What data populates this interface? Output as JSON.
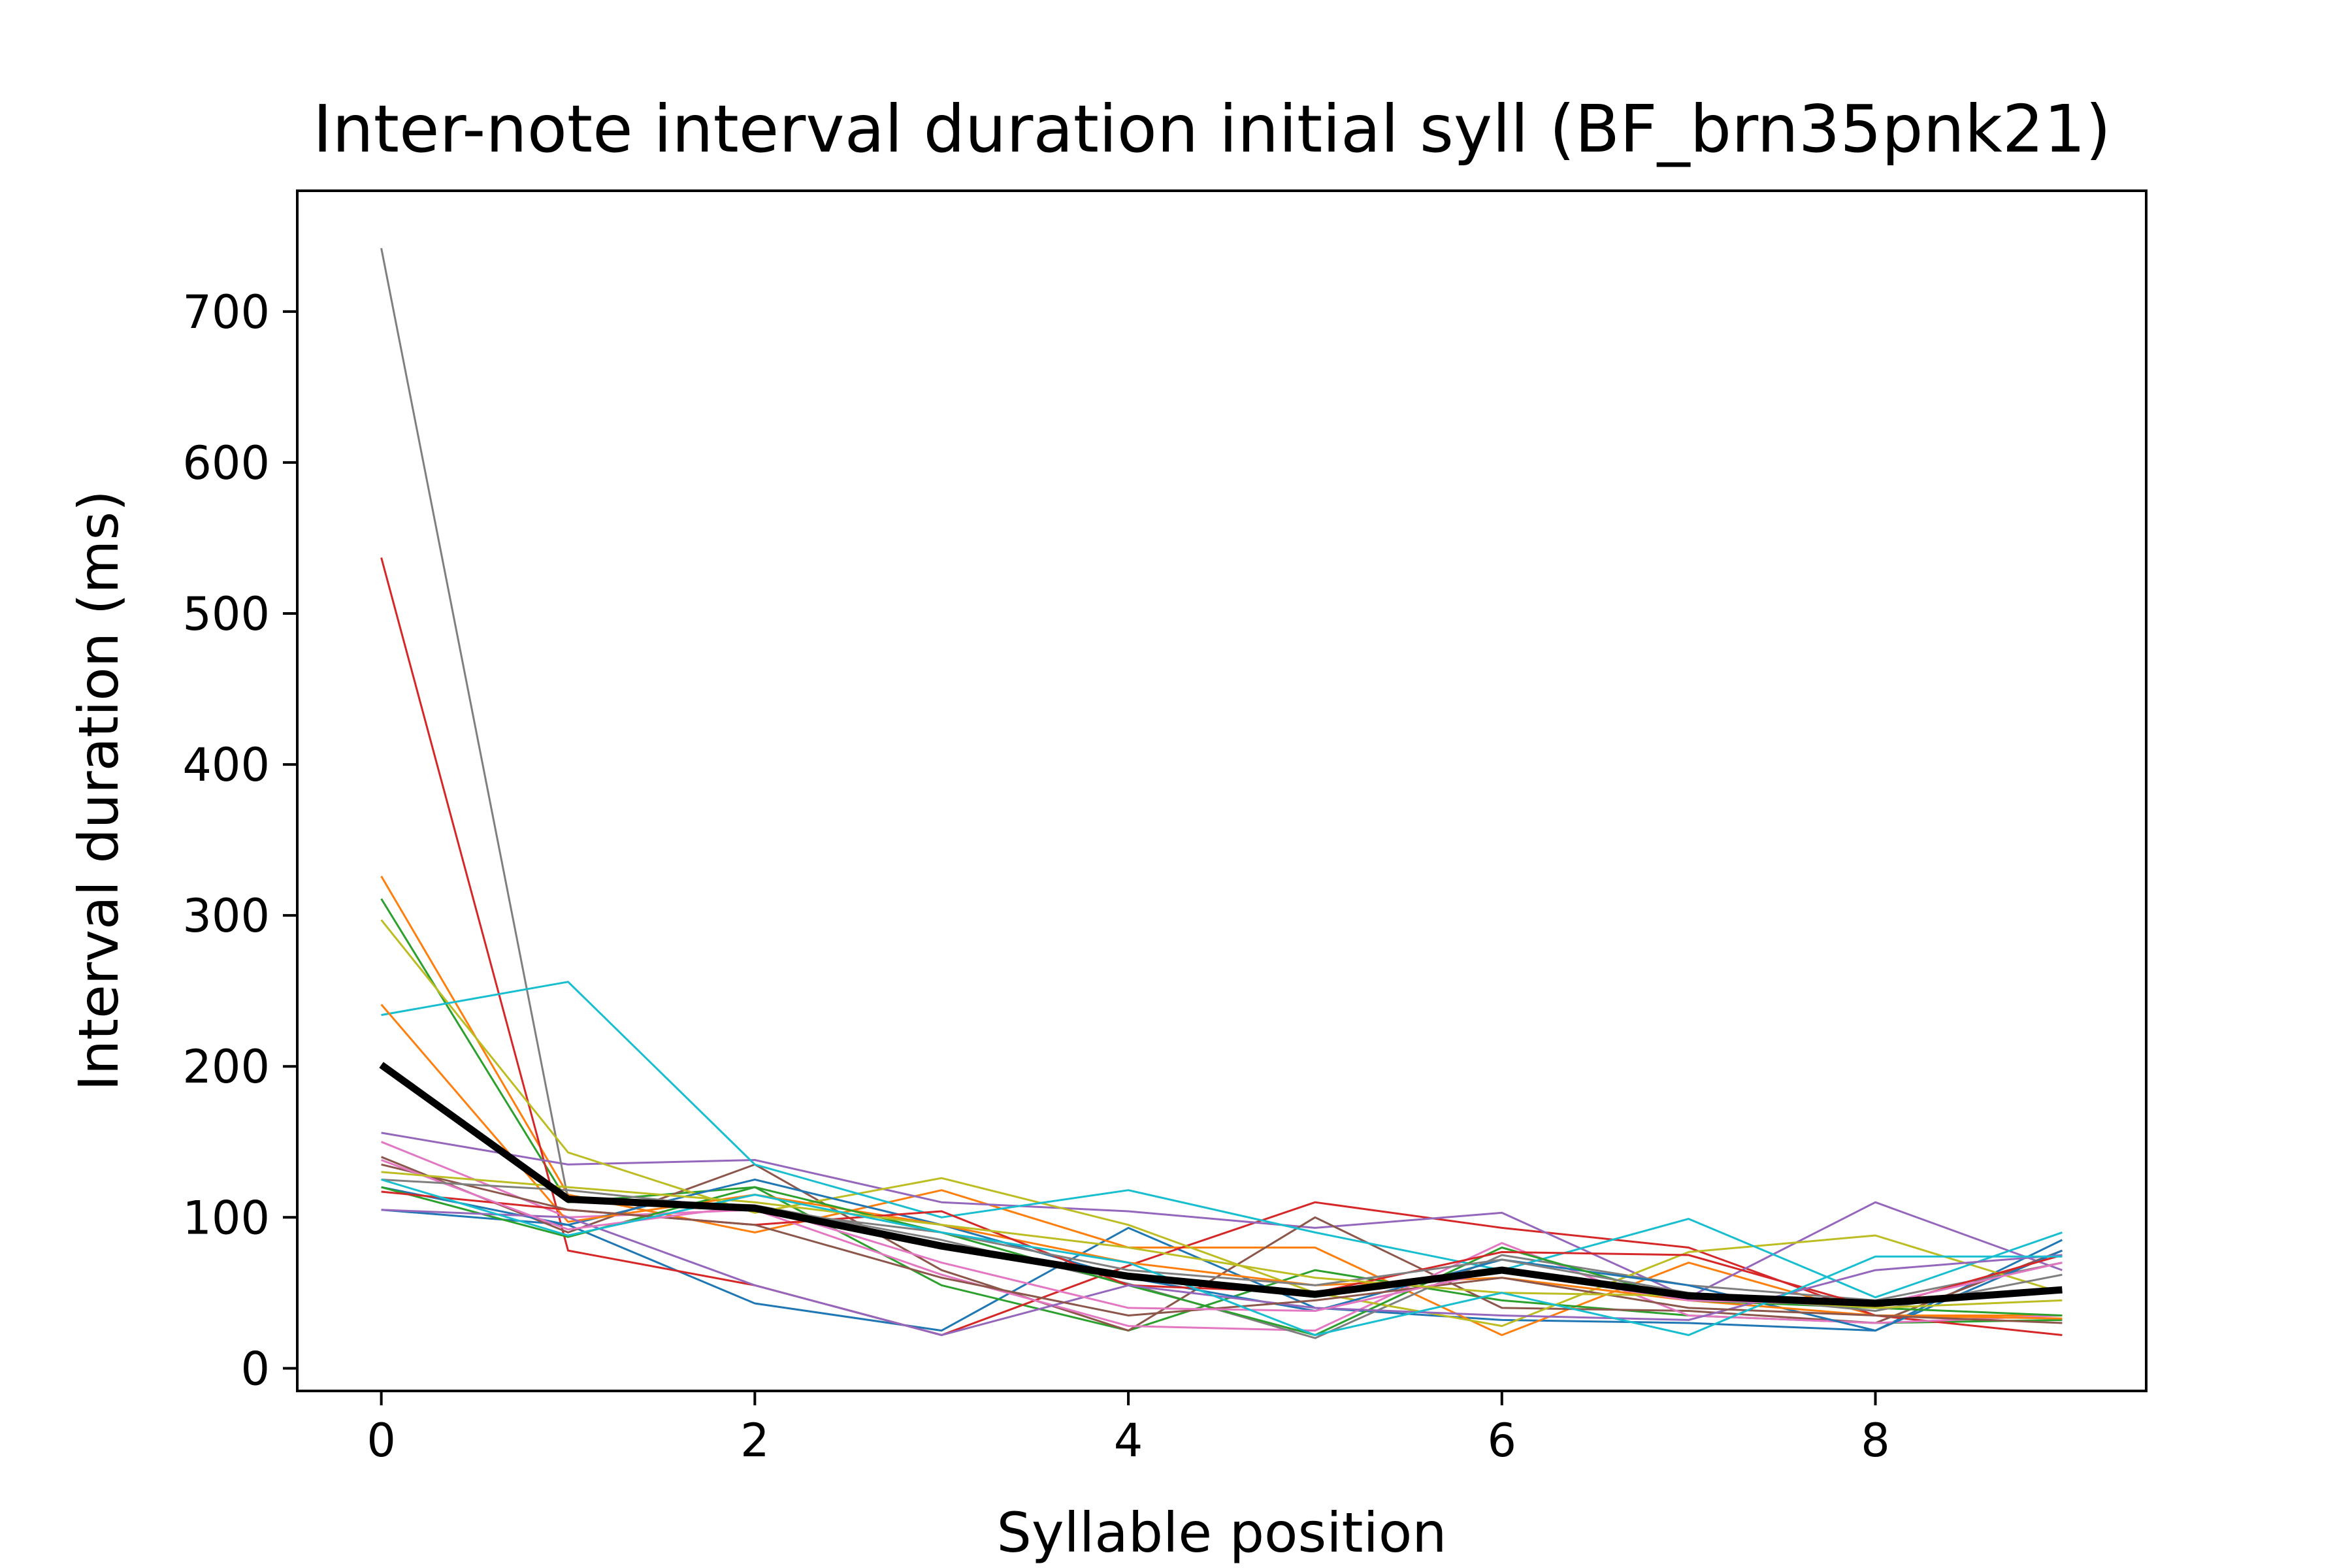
{
  "chart_data": {
    "type": "line",
    "title": "Inter-note interval duration initial syll (BF_brn35pnk21)",
    "xlabel": "Syllable position",
    "ylabel": "Interval duration (ms)",
    "xlim": [
      -0.45,
      9.45
    ],
    "ylim": [
      -15,
      780
    ],
    "xticks": [
      0,
      2,
      4,
      6,
      8
    ],
    "yticks": [
      0,
      100,
      200,
      300,
      400,
      500,
      600,
      700
    ],
    "grid": false,
    "legend": "none",
    "x": [
      0,
      1,
      2,
      3,
      4,
      5,
      6,
      7,
      8,
      9
    ],
    "series": [
      {
        "color": "#1f77b4",
        "values": [
          105,
          95,
          43,
          25,
          93,
          40,
          32,
          30,
          25,
          85
        ]
      },
      {
        "color": "#ff7f0e",
        "values": [
          326,
          115,
          90,
          118,
          80,
          80,
          22,
          70,
          35,
          35
        ]
      },
      {
        "color": "#2ca02c",
        "values": [
          311,
          110,
          120,
          55,
          25,
          65,
          45,
          35,
          30,
          32
        ]
      },
      {
        "color": "#d62728",
        "values": [
          537,
          78,
          55,
          22,
          68,
          110,
          93,
          80,
          35,
          22
        ]
      },
      {
        "color": "#9467bd",
        "values": [
          156,
          135,
          138,
          110,
          104,
          93,
          103,
          47,
          110,
          65
        ]
      },
      {
        "color": "#8c564b",
        "values": [
          140,
          90,
          135,
          65,
          25,
          100,
          40,
          38,
          30,
          78
        ]
      },
      {
        "color": "#e377c2",
        "values": [
          150,
          100,
          105,
          62,
          28,
          25,
          83,
          35,
          30,
          35
        ]
      },
      {
        "color": "#7f7f7f",
        "values": [
          742,
          112,
          108,
          85,
          56,
          20,
          75,
          55,
          45,
          70
        ]
      },
      {
        "color": "#bcbd22",
        "values": [
          297,
          143,
          103,
          126,
          95,
          50,
          28,
          77,
          88,
          50
        ]
      },
      {
        "color": "#17becf",
        "values": [
          234,
          256,
          135,
          100,
          118,
          90,
          65,
          99,
          47,
          90
        ]
      },
      {
        "color": "#1f77b4",
        "values": [
          120,
          95,
          125,
          95,
          60,
          38,
          72,
          55,
          25,
          78
        ]
      },
      {
        "color": "#ff7f0e",
        "values": [
          241,
          97,
          115,
          95,
          70,
          55,
          60,
          45,
          35,
          33
        ]
      },
      {
        "color": "#2ca02c",
        "values": [
          120,
          87,
          120,
          90,
          55,
          22,
          80,
          45,
          40,
          35
        ]
      },
      {
        "color": "#d62728",
        "values": [
          117,
          105,
          95,
          104,
          55,
          50,
          77,
          75,
          40,
          75
        ]
      },
      {
        "color": "#9467bd",
        "values": [
          105,
          100,
          55,
          22,
          55,
          40,
          35,
          32,
          65,
          75
        ]
      },
      {
        "color": "#8c564b",
        "values": [
          135,
          105,
          95,
          60,
          35,
          45,
          60,
          40,
          35,
          30
        ]
      },
      {
        "color": "#e377c2",
        "values": [
          138,
          92,
          108,
          70,
          40,
          38,
          65,
          45,
          42,
          70
        ]
      },
      {
        "color": "#7f7f7f",
        "values": [
          125,
          118,
          105,
          90,
          65,
          55,
          72,
          50,
          38,
          62
        ]
      },
      {
        "color": "#bcbd22",
        "values": [
          130,
          120,
          110,
          95,
          80,
          60,
          50,
          48,
          40,
          45
        ]
      },
      {
        "color": "#17becf",
        "values": [
          125,
          88,
          115,
          90,
          70,
          22,
          50,
          22,
          74,
          74
        ]
      }
    ],
    "mean_series": {
      "color": "#000000",
      "values": [
        201,
        112,
        106,
        81,
        61,
        49,
        65,
        48,
        43,
        52
      ]
    }
  }
}
